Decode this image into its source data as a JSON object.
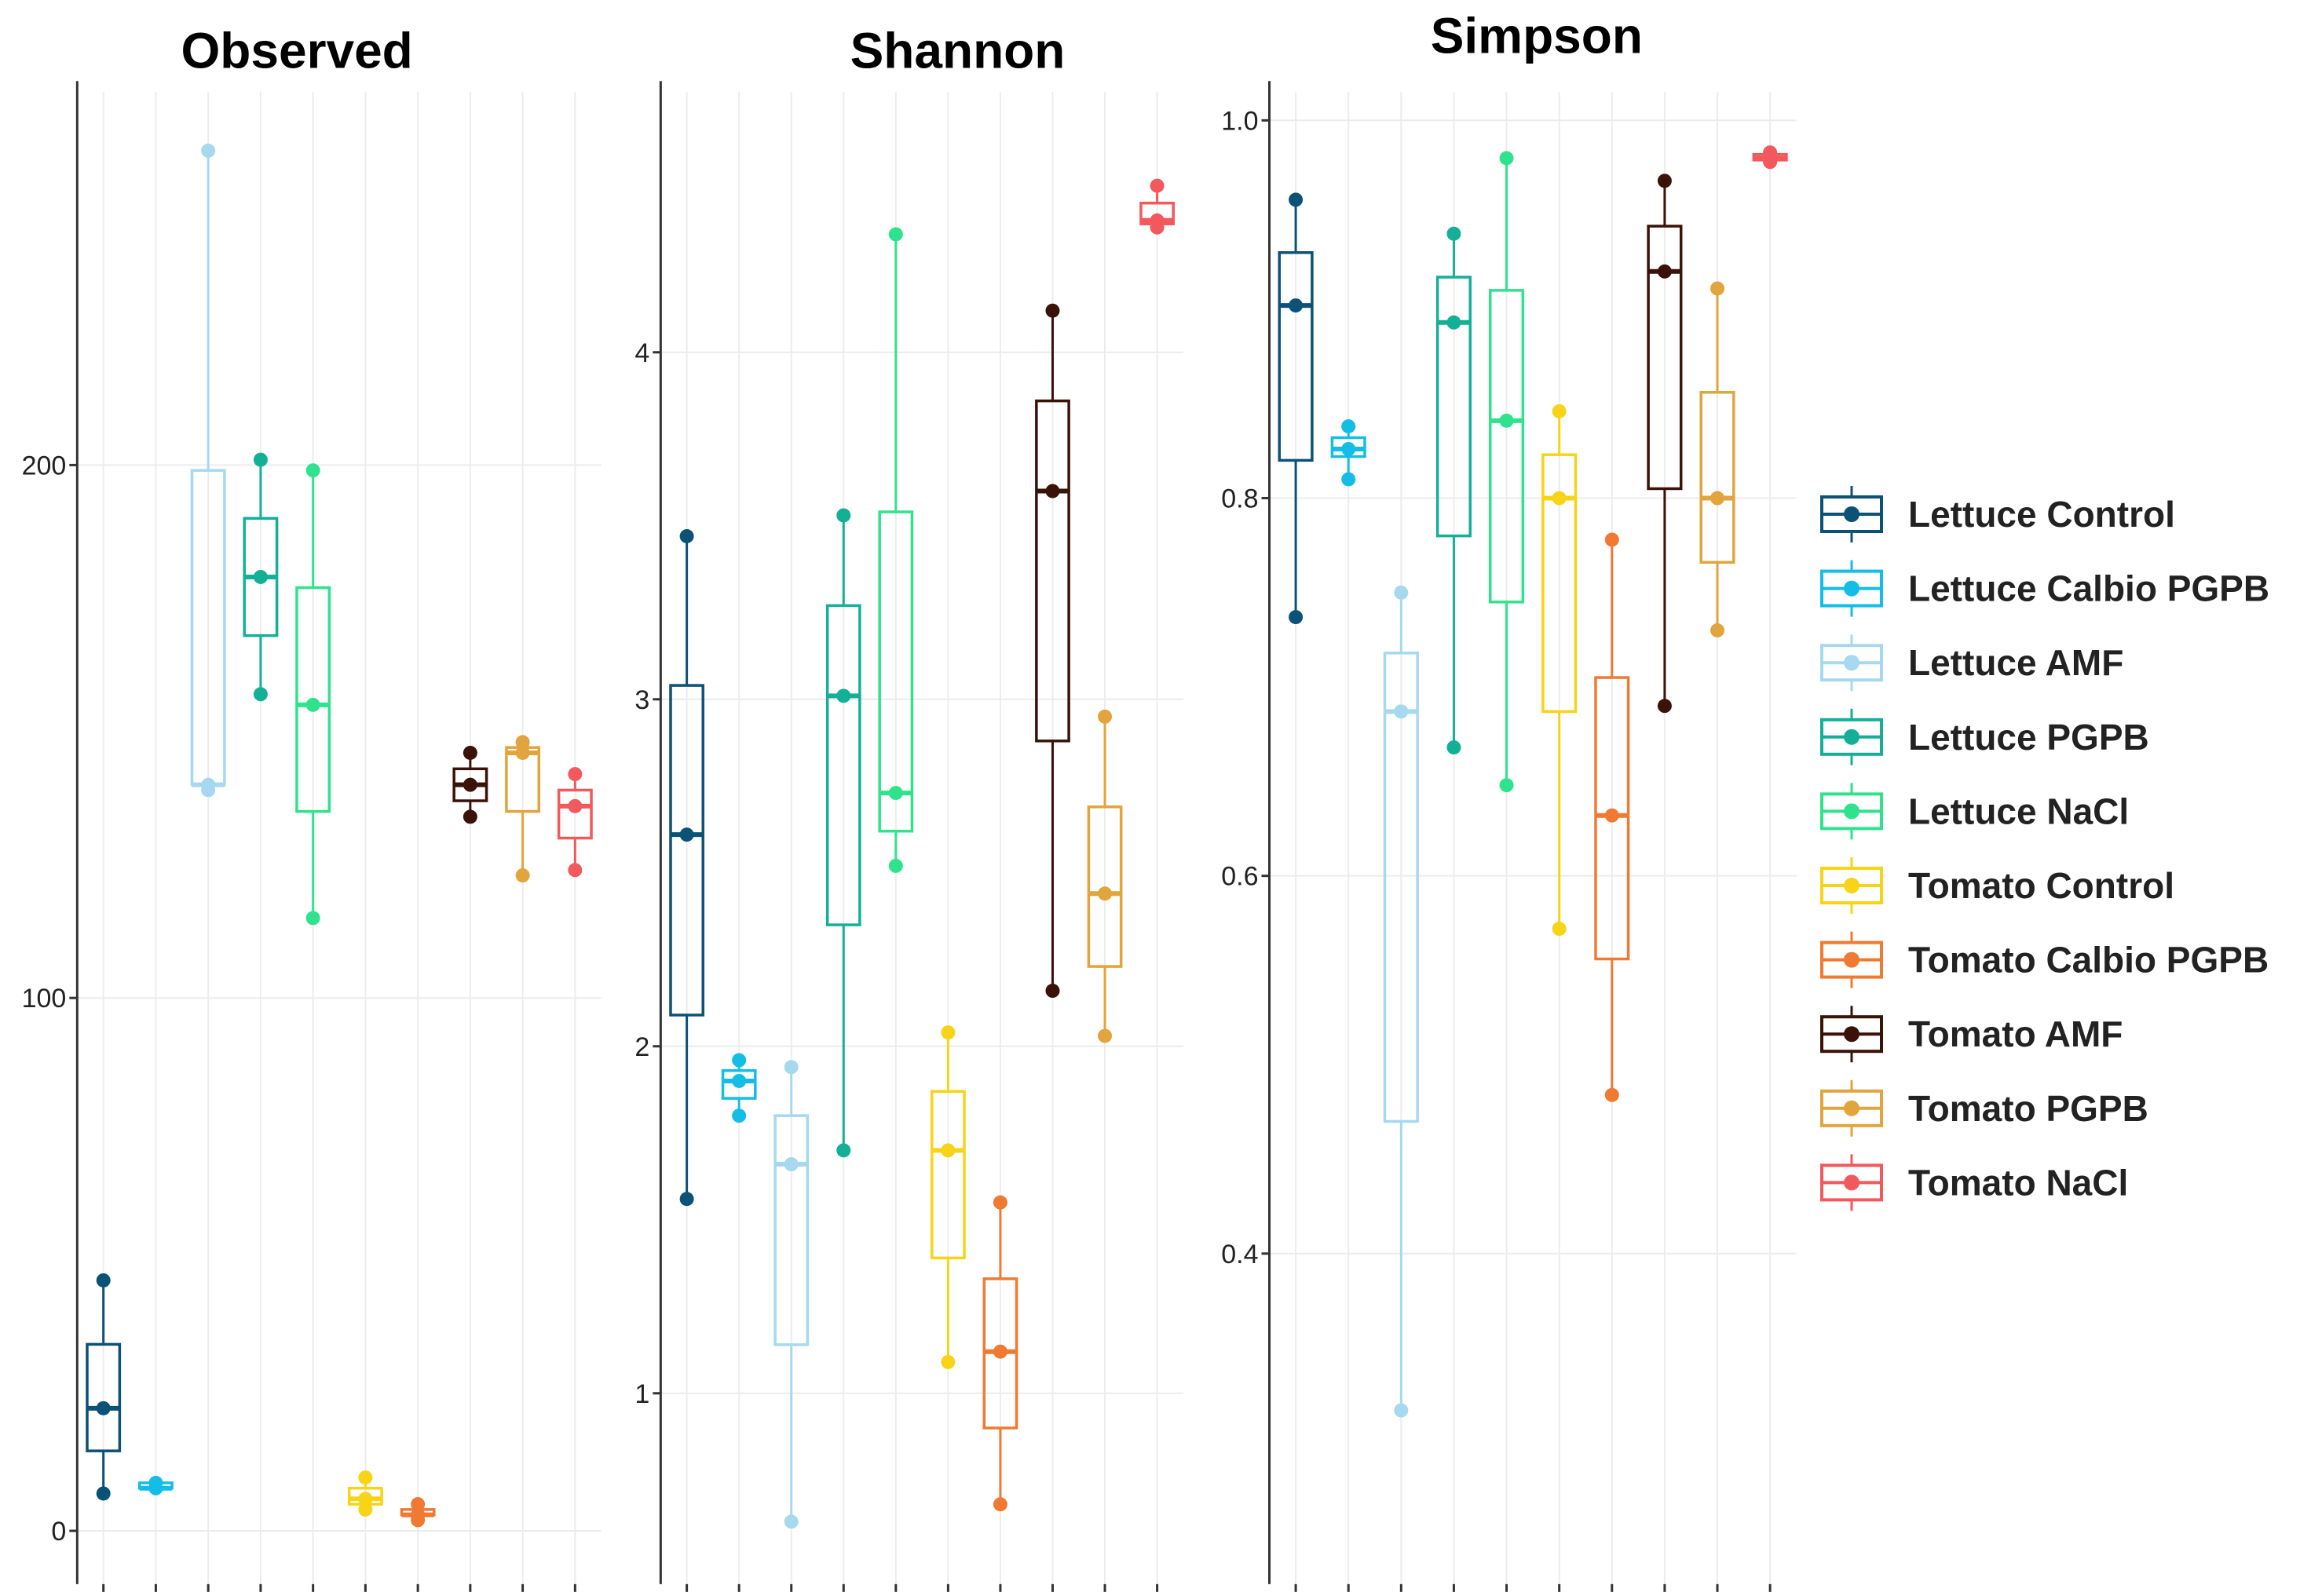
{
  "chart_data": {
    "type": "boxplot",
    "groups": [
      {
        "name": "Lettuce Control",
        "color": "#0b5276"
      },
      {
        "name": "Lettuce Calbio PGPB",
        "color": "#14bde6"
      },
      {
        "name": "Lettuce AMF",
        "color": "#a6d9ef"
      },
      {
        "name": "Lettuce PGPB",
        "color": "#13b097"
      },
      {
        "name": "Lettuce NaCl",
        "color": "#2fe38d"
      },
      {
        "name": "Tomato Control",
        "color": "#f7d417"
      },
      {
        "name": "Tomato Calbio PGPB",
        "color": "#f07a33"
      },
      {
        "name": "Tomato AMF",
        "color": "#3b1208"
      },
      {
        "name": "Tomato PGPB",
        "color": "#e2a43c"
      },
      {
        "name": "Tomato NaCl",
        "color": "#f2595c"
      }
    ],
    "panels": [
      {
        "title": "Observed",
        "ylim": [
          -10,
          270
        ],
        "yticks": [
          0,
          100,
          200
        ],
        "stats": [
          {
            "min": 7,
            "q1": 15,
            "median": 23,
            "q3": 35,
            "max": 47
          },
          {
            "min": 8,
            "q1": 8,
            "median": 8,
            "q3": 9,
            "max": 9
          },
          {
            "min": 139,
            "q1": 140,
            "median": 140,
            "q3": 199,
            "max": 259
          },
          {
            "min": 157,
            "q1": 168,
            "median": 179,
            "q3": 190,
            "max": 201
          },
          {
            "min": 115,
            "q1": 135,
            "median": 155,
            "q3": 177,
            "max": 199
          },
          {
            "min": 4,
            "q1": 5,
            "median": 6,
            "q3": 8,
            "max": 10
          },
          {
            "min": 2,
            "q1": 3,
            "median": 3,
            "q3": 4,
            "max": 5
          },
          {
            "min": 134,
            "q1": 137,
            "median": 140,
            "q3": 143,
            "max": 146
          },
          {
            "min": 123,
            "q1": 135,
            "median": 146,
            "q3": 147,
            "max": 148
          },
          {
            "min": 124,
            "q1": 130,
            "median": 136,
            "q3": 139,
            "max": 142
          }
        ]
      },
      {
        "title": "Shannon",
        "ylim": [
          0.45,
          4.75
        ],
        "yticks": [
          1,
          2,
          3,
          4
        ],
        "stats": [
          {
            "min": 1.56,
            "q1": 2.09,
            "median": 2.61,
            "q3": 3.04,
            "max": 3.47
          },
          {
            "min": 1.8,
            "q1": 1.85,
            "median": 1.9,
            "q3": 1.93,
            "max": 1.96
          },
          {
            "min": 0.63,
            "q1": 1.14,
            "median": 1.66,
            "q3": 1.8,
            "max": 1.94
          },
          {
            "min": 1.7,
            "q1": 2.35,
            "median": 3.01,
            "q3": 3.27,
            "max": 3.53
          },
          {
            "min": 2.52,
            "q1": 2.62,
            "median": 2.73,
            "q3": 3.54,
            "max": 4.34
          },
          {
            "min": 1.09,
            "q1": 1.39,
            "median": 1.7,
            "q3": 1.87,
            "max": 2.04
          },
          {
            "min": 0.68,
            "q1": 0.9,
            "median": 1.12,
            "q3": 1.33,
            "max": 1.55
          },
          {
            "min": 2.16,
            "q1": 2.88,
            "median": 3.6,
            "q3": 3.86,
            "max": 4.12
          },
          {
            "min": 2.03,
            "q1": 2.23,
            "median": 2.44,
            "q3": 2.69,
            "max": 2.95
          },
          {
            "min": 4.36,
            "q1": 4.37,
            "median": 4.38,
            "q3": 4.43,
            "max": 4.48
          }
        ]
      },
      {
        "title": "Simpson",
        "ylim": [
          0.225,
          1.015
        ],
        "yticks": [
          0.4,
          0.6,
          0.8,
          1.0
        ],
        "stats": [
          {
            "min": 0.737,
            "q1": 0.82,
            "median": 0.902,
            "q3": 0.93,
            "max": 0.958
          },
          {
            "min": 0.81,
            "q1": 0.822,
            "median": 0.826,
            "q3": 0.832,
            "max": 0.838
          },
          {
            "min": 0.317,
            "q1": 0.47,
            "median": 0.687,
            "q3": 0.718,
            "max": 0.75
          },
          {
            "min": 0.668,
            "q1": 0.78,
            "median": 0.893,
            "q3": 0.917,
            "max": 0.94
          },
          {
            "min": 0.648,
            "q1": 0.745,
            "median": 0.841,
            "q3": 0.91,
            "max": 0.98
          },
          {
            "min": 0.572,
            "q1": 0.687,
            "median": 0.8,
            "q3": 0.823,
            "max": 0.846
          },
          {
            "min": 0.484,
            "q1": 0.556,
            "median": 0.632,
            "q3": 0.705,
            "max": 0.778
          },
          {
            "min": 0.69,
            "q1": 0.805,
            "median": 0.92,
            "q3": 0.944,
            "max": 0.968
          },
          {
            "min": 0.73,
            "q1": 0.766,
            "median": 0.8,
            "q3": 0.856,
            "max": 0.911
          },
          {
            "min": 0.978,
            "q1": 0.979,
            "median": 0.98,
            "q3": 0.982,
            "max": 0.983
          }
        ]
      }
    ]
  }
}
